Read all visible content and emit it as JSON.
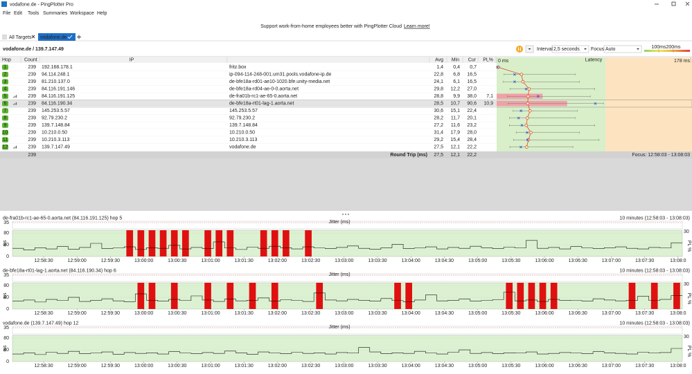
{
  "window": {
    "title": "vodafone.de - PingPlotter Pro"
  },
  "menu": [
    "File",
    "Edit",
    "Tools",
    "Summaries",
    "Workspace",
    "Help"
  ],
  "banner": {
    "text": "Support work-from-home employees better with PingPlotter Cloud",
    "link": "Learn more!"
  },
  "tabs": [
    "All Targets",
    "vodafone.de"
  ],
  "target": "vodafone.de / 139.7.147.49",
  "toolbar": {
    "interval_label": "Interval",
    "interval": "2,5 seconds",
    "focus_label": "Focus",
    "focus": "Auto",
    "thresholds": [
      {
        "value": 100,
        "label": "100ms"
      },
      {
        "value": 200,
        "label": "200ms"
      }
    ]
  },
  "table": {
    "headers": [
      "Hop",
      "Count",
      "IP",
      "Avg",
      "Min",
      "Cur",
      "PL%",
      "Latency"
    ],
    "rows": [
      {
        "hop": "1",
        "count": "239",
        "ip": "192.168.178.1",
        "name": "fritz.box",
        "avg": "1,4",
        "min": "0,4",
        "cur": "0,7"
      },
      {
        "hop": "2",
        "count": "239",
        "ip": "94.114.248.1",
        "name": "ip-094-114-248-001.um31.pools.vodafone-ip.de",
        "avg": "22,8",
        "min": "6,8",
        "cur": "16,5"
      },
      {
        "hop": "3",
        "count": "239",
        "ip": "81.210.137.0",
        "name": "de-bfe18a-rd01-ae10-1020.bfe.unity-media.net",
        "avg": "24,1",
        "min": "6,1",
        "cur": "16,5"
      },
      {
        "hop": "4",
        "count": "239",
        "ip": "84.116.191.146",
        "name": "de-bfe18a-rd04-ae-0-0.aorta.net",
        "avg": "29,8",
        "min": "12,2",
        "cur": "27,0"
      },
      {
        "hop": "5",
        "count": "239",
        "ip": "84.116.191.125",
        "name": "de-fra01b-rc1-ae-65-0.aorta.net",
        "avg": "28,8",
        "min": "9,9",
        "cur": "38,0",
        "pl": "7,1",
        "graph": true
      },
      {
        "hop": "6",
        "count": "239",
        "ip": "84.116.190.34",
        "name": "de-bfe18a-rt01-lag-1.aorta.net",
        "avg": "28,5",
        "min": "10,7",
        "cur": "90,6",
        "pl": "10,9",
        "graph": true,
        "selected": true
      },
      {
        "hop": "7",
        "count": "239",
        "ip": "145.253.5.57",
        "name": "145.253.5.57",
        "avg": "30,6",
        "min": "15,1",
        "cur": "22,4"
      },
      {
        "hop": "8",
        "count": "239",
        "ip": "92.79.230.2",
        "name": "92.79.230.2",
        "avg": "28,2",
        "min": "11,7",
        "cur": "20,1"
      },
      {
        "hop": "9",
        "count": "239",
        "ip": "139.7.148.84",
        "name": "139.7.148.84",
        "avg": "27,2",
        "min": "11,6",
        "cur": "23,2"
      },
      {
        "hop": "10",
        "count": "239",
        "ip": "10.210.0.50",
        "name": "10.210.0.50",
        "avg": "31,4",
        "min": "17,9",
        "cur": "28,0"
      },
      {
        "hop": "11",
        "count": "239",
        "ip": "10.210.3.113",
        "name": "10.210.3.113",
        "avg": "29,2",
        "min": "15,4",
        "cur": "28,4"
      },
      {
        "hop": "12",
        "count": "239",
        "ip": "139.7.147.49",
        "name": "vodafone.de",
        "avg": "27,5",
        "min": "12,1",
        "cur": "22,2",
        "graph": true
      }
    ],
    "summary": {
      "count": "239",
      "label": "Round Trip (ms)",
      "avg": "27,5",
      "min": "12,1",
      "cur": "22,2",
      "focus": "Focus: 12:58:03 - 13:08:03"
    }
  },
  "chart_data": [
    {
      "type": "hop-latency",
      "xlim": [
        0,
        178
      ],
      "xticks": [
        {
          "value": 0,
          "label": "0 ms"
        },
        {
          "value": 178,
          "label": "178 ms"
        }
      ],
      "avg": [
        1.4,
        22.8,
        24.1,
        29.8,
        28.8,
        28.5,
        30.6,
        28.2,
        27.2,
        31.4,
        29.2,
        27.5
      ],
      "min": [
        0.4,
        6.8,
        6.1,
        12.2,
        9.9,
        10.7,
        15.1,
        11.7,
        11.6,
        17.9,
        15.4,
        12.1
      ],
      "cur": [
        0.7,
        16.5,
        16.5,
        27.0,
        38.0,
        90.6,
        22.4,
        20.1,
        23.2,
        28.0,
        28.4,
        22.2
      ],
      "max": [
        3,
        72,
        76,
        90,
        86,
        98,
        74,
        72,
        90,
        76,
        94,
        70
      ],
      "loss": [
        0,
        0,
        0,
        0,
        7.1,
        10.9,
        0,
        0,
        0,
        0,
        0,
        0
      ],
      "loss_lim": [
        0,
        30
      ]
    },
    {
      "type": "timeline",
      "title": "de-fra01b-rc1-ae-65-0.aorta.net (84.116.191.125) hop 5",
      "range": "10 minutes (12:58:03 - 13:08:03)",
      "jitter_label": "Jitter (ms)",
      "jitter_yticks": [
        35
      ],
      "ylabel": "ms",
      "ylim": [
        0,
        90
      ],
      "yticks": [
        0,
        40,
        80
      ],
      "y2label": "PL %",
      "y2lim": [
        0,
        30
      ],
      "y2ticks": [
        30
      ],
      "xticks": [
        "12:58:30",
        "12:59:00",
        "12:59:30",
        "13:00:00",
        "13:00:30",
        "13:01:00",
        "13:01:30",
        "13:02:00",
        "13:02:30",
        "13:03:00",
        "13:03:30",
        "13:04:00",
        "13:04:30",
        "13:05:00",
        "13:05:30",
        "13:06:00",
        "13:06:30",
        "13:07:00",
        "13:07:30",
        "13:08:0"
      ],
      "latency": [
        28,
        22,
        30,
        26,
        34,
        25,
        31,
        45,
        27,
        29,
        33,
        24,
        30,
        28,
        38,
        26,
        31,
        27,
        50,
        29,
        24,
        32,
        28,
        35,
        30,
        26,
        33,
        29,
        27,
        31,
        36,
        28,
        25,
        30,
        42,
        27,
        29,
        33,
        26,
        31,
        28,
        35,
        30,
        27,
        32,
        29,
        55,
        28,
        31,
        26,
        34,
        29,
        27,
        30,
        33,
        28,
        26,
        31,
        29,
        47
      ],
      "loss": [
        0,
        0,
        0,
        0,
        0,
        0,
        0,
        0,
        0,
        0,
        30,
        30,
        30,
        30,
        30,
        30,
        0,
        30,
        30,
        30,
        0,
        0,
        30,
        30,
        30,
        0,
        30,
        0,
        0,
        0,
        0,
        0,
        0,
        0,
        0,
        0,
        0,
        0,
        0,
        0,
        0,
        0,
        0,
        0,
        0,
        0,
        0,
        0,
        0,
        0,
        0,
        0,
        0,
        0,
        0,
        0,
        0,
        0,
        0,
        0
      ]
    },
    {
      "type": "timeline",
      "title": "de-bfe18a-rt01-lag-1.aorta.net (84.116.190.34) hop 6",
      "range": "10 minutes (12:58:03 - 13:08:03)",
      "jitter_label": "Jitter (ms)",
      "jitter_yticks": [
        35
      ],
      "ylabel": "ms",
      "ylim": [
        0,
        90
      ],
      "yticks": [
        0,
        40,
        80
      ],
      "y2label": "PL %",
      "y2lim": [
        0,
        30
      ],
      "y2ticks": [
        30
      ],
      "xticks": [
        "12:58:30",
        "12:59:00",
        "12:59:30",
        "13:00:00",
        "13:00:30",
        "13:01:00",
        "13:01:30",
        "13:02:00",
        "13:02:30",
        "13:03:00",
        "13:03:30",
        "13:04:00",
        "13:04:30",
        "13:05:00",
        "13:05:30",
        "13:06:00",
        "13:06:30",
        "13:07:00",
        "13:07:30",
        "13:08:0"
      ],
      "latency": [
        27,
        31,
        24,
        33,
        29,
        40,
        26,
        30,
        35,
        28,
        25,
        52,
        30,
        27,
        33,
        29,
        45,
        31,
        26,
        34,
        28,
        30,
        38,
        27,
        32,
        29,
        26,
        55,
        31,
        28,
        33,
        30,
        27,
        36,
        29,
        25,
        31,
        48,
        28,
        30,
        34,
        27,
        29,
        32,
        58,
        28,
        31,
        26,
        33,
        30,
        29,
        27,
        35,
        31,
        28,
        30,
        44,
        29,
        33,
        46
      ],
      "loss": [
        0,
        0,
        0,
        0,
        0,
        0,
        0,
        0,
        0,
        0,
        0,
        30,
        30,
        0,
        30,
        0,
        0,
        30,
        0,
        30,
        0,
        30,
        0,
        30,
        0,
        0,
        0,
        30,
        0,
        0,
        0,
        0,
        0,
        0,
        30,
        30,
        0,
        0,
        0,
        0,
        0,
        0,
        0,
        0,
        30,
        30,
        30,
        30,
        30,
        0,
        0,
        0,
        0,
        0,
        0,
        30,
        0,
        30,
        0,
        30
      ]
    },
    {
      "type": "timeline",
      "title": "vodafone.de (139.7.147.49) hop 12",
      "range": "10 minutes (12:58:03 - 13:08:03)",
      "jitter_label": "Jitter (ms)",
      "jitter_yticks": [
        35
      ],
      "ylabel": "ms",
      "ylim": [
        0,
        90
      ],
      "yticks": [
        0,
        40,
        80
      ],
      "y2label": "PL %",
      "y2lim": [
        0,
        30
      ],
      "y2ticks": [
        30
      ],
      "xticks": [
        "12:58:30",
        "12:59:00",
        "12:59:30",
        "13:00:00",
        "13:00:30",
        "13:01:00",
        "13:01:30",
        "13:02:00",
        "13:02:30",
        "13:03:00",
        "13:03:30",
        "13:04:00",
        "13:04:30",
        "13:05:00",
        "13:05:30",
        "13:06:00",
        "13:06:30",
        "13:07:00",
        "13:07:30",
        "13:08:0"
      ],
      "latency": [
        26,
        30,
        24,
        32,
        28,
        35,
        27,
        29,
        33,
        25,
        31,
        28,
        30,
        26,
        34,
        29,
        27,
        31,
        28,
        36,
        30,
        25,
        33,
        29,
        27,
        32,
        28,
        30,
        26,
        31,
        29,
        48,
        33,
        27,
        30,
        28,
        35,
        29,
        26,
        32,
        40,
        28,
        31,
        27,
        30,
        29,
        33,
        26,
        28,
        31,
        29,
        27,
        34,
        30,
        28,
        26,
        32,
        29,
        31,
        45
      ],
      "loss": [
        0,
        0,
        0,
        0,
        0,
        0,
        0,
        0,
        0,
        0,
        0,
        0,
        0,
        0,
        0,
        0,
        0,
        0,
        0,
        0,
        0,
        0,
        0,
        0,
        0,
        0,
        0,
        0,
        0,
        0,
        0,
        0,
        0,
        0,
        0,
        0,
        0,
        0,
        0,
        0,
        0,
        0,
        0,
        0,
        0,
        0,
        0,
        0,
        0,
        0,
        0,
        0,
        0,
        0,
        0,
        0,
        0,
        0,
        0,
        0
      ]
    }
  ]
}
